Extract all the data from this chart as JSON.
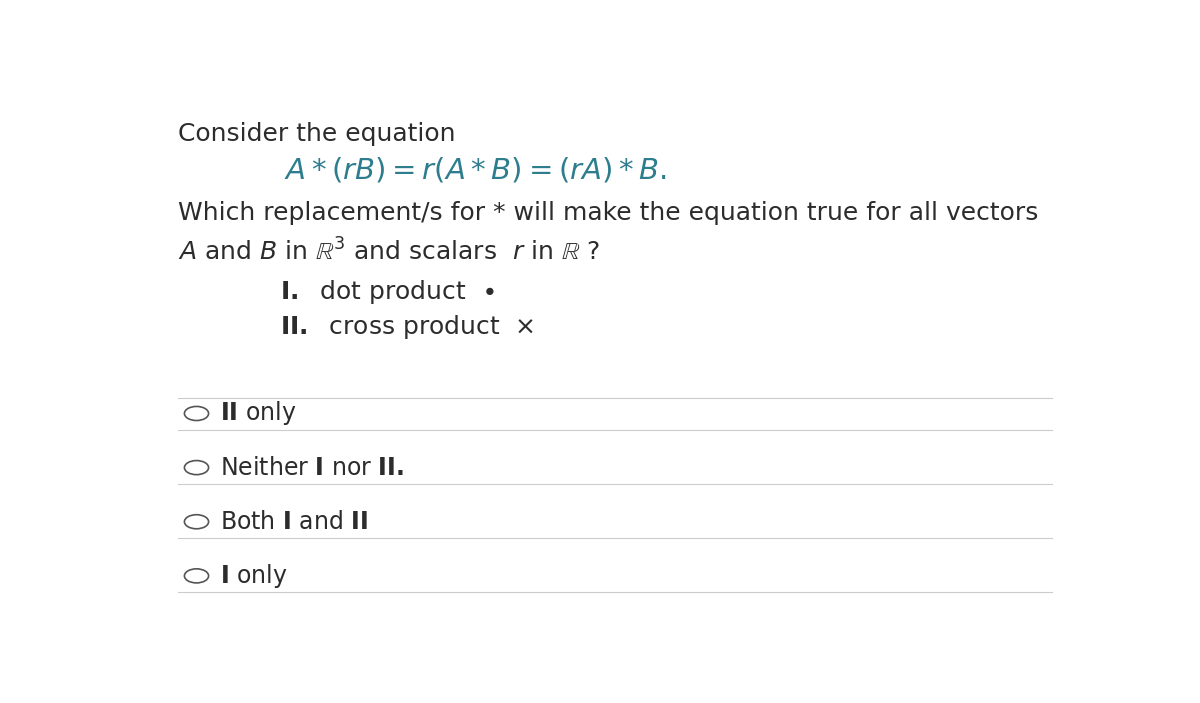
{
  "bg_color": "#ffffff",
  "text_color": "#2c2c2c",
  "teal_color": "#2e7d8e",
  "title_line1": "Consider the equation",
  "question_line1": "Which replacement/s for * will make the equation true for all vectors",
  "font_size_main": 18,
  "font_size_eq": 21,
  "font_size_choices": 17,
  "choices": [
    "II only",
    "Neither I nor II.",
    "Both I and II",
    "I only"
  ]
}
